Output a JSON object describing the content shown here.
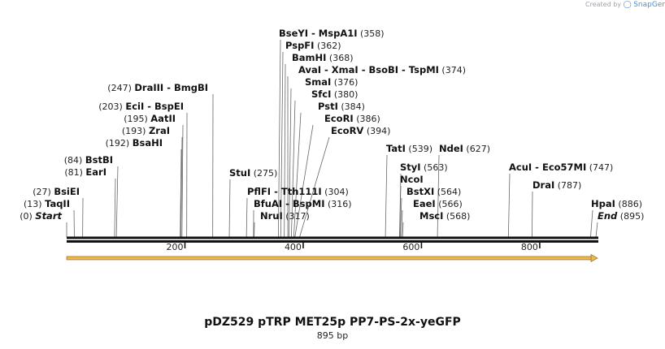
{
  "credit": {
    "text": "Created by",
    "brand": "SnapGene"
  },
  "map": {
    "title": "pDZ529 pTRP MET25p PP7-PS-2x-yeGFP",
    "length_label": "895 bp",
    "total_bp": 895,
    "ticks": [
      {
        "bp": 200,
        "label": "200"
      },
      {
        "bp": 400,
        "label": "400"
      },
      {
        "bp": 600,
        "label": "600"
      },
      {
        "bp": 800,
        "label": "800"
      }
    ],
    "feature": {
      "start": 0,
      "end": 895,
      "color": "#f0b84a",
      "direction": "forward"
    },
    "sites": [
      {
        "names": [
          "Start"
        ],
        "pos": "(0)",
        "bp": 0,
        "italic": true,
        "side": "left"
      },
      {
        "names": [
          "TaqII"
        ],
        "pos": "(13)",
        "bp": 13,
        "side": "left"
      },
      {
        "names": [
          "BsiEI"
        ],
        "pos": "(27)",
        "bp": 27,
        "side": "left"
      },
      {
        "names": [
          "EarI"
        ],
        "pos": "(81)",
        "bp": 81,
        "side": "left"
      },
      {
        "names": [
          "BstBI"
        ],
        "pos": "(84)",
        "bp": 84,
        "side": "left"
      },
      {
        "names": [
          "BsaHI"
        ],
        "pos": "(192)",
        "bp": 192,
        "side": "left"
      },
      {
        "names": [
          "ZraI"
        ],
        "pos": "(193)",
        "bp": 193,
        "side": "left"
      },
      {
        "names": [
          "AatII"
        ],
        "pos": "(195)",
        "bp": 195,
        "side": "left"
      },
      {
        "names": [
          "EciI",
          "BspEI"
        ],
        "pos": "(203)",
        "bp": 203,
        "side": "left"
      },
      {
        "names": [
          "DraIII",
          "BmgBI"
        ],
        "pos": "(247)",
        "bp": 247,
        "side": "left"
      },
      {
        "names": [
          "StuI"
        ],
        "pos": "(275)",
        "bp": 275,
        "side": "right"
      },
      {
        "names": [
          "PflFI",
          "Tth111I"
        ],
        "pos": "(304)",
        "bp": 304,
        "side": "right"
      },
      {
        "names": [
          "BfuAI",
          "BspMI"
        ],
        "pos": "(316)",
        "bp": 316,
        "side": "right"
      },
      {
        "names": [
          "NruI"
        ],
        "pos": "(317)",
        "bp": 317,
        "side": "right"
      },
      {
        "names": [
          "BseYI",
          "MspA1I"
        ],
        "pos": "(358)",
        "bp": 358,
        "side": "right"
      },
      {
        "names": [
          "PspFI"
        ],
        "pos": "(362)",
        "bp": 362,
        "side": "right"
      },
      {
        "names": [
          "BamHI"
        ],
        "pos": "(368)",
        "bp": 368,
        "side": "right"
      },
      {
        "names": [
          "AvaI",
          "XmaI",
          "BsoBI",
          "TspMI"
        ],
        "pos": "(374)",
        "bp": 374,
        "side": "right"
      },
      {
        "names": [
          "SmaI"
        ],
        "pos": "(376)",
        "bp": 376,
        "side": "right"
      },
      {
        "names": [
          "SfcI"
        ],
        "pos": "(380)",
        "bp": 380,
        "side": "right"
      },
      {
        "names": [
          "PstI"
        ],
        "pos": "(384)",
        "bp": 384,
        "side": "right"
      },
      {
        "names": [
          "EcoRI"
        ],
        "pos": "(386)",
        "bp": 386,
        "side": "right"
      },
      {
        "names": [
          "EcoRV"
        ],
        "pos": "(394)",
        "bp": 394,
        "side": "right"
      },
      {
        "names": [
          "TatI"
        ],
        "pos": "(539)",
        "bp": 539,
        "side": "right"
      },
      {
        "names": [
          "StyI"
        ],
        "pos": "(563)",
        "bp": 563,
        "side": "right"
      },
      {
        "names": [
          "NcoI"
        ],
        "pos": "",
        "bp": 563,
        "side": "right"
      },
      {
        "names": [
          "BstXI"
        ],
        "pos": "(564)",
        "bp": 564,
        "side": "right"
      },
      {
        "names": [
          "EaeI"
        ],
        "pos": "(566)",
        "bp": 566,
        "side": "right"
      },
      {
        "names": [
          "MscI"
        ],
        "pos": "(568)",
        "bp": 568,
        "side": "right"
      },
      {
        "names": [
          "NdeI"
        ],
        "pos": "(627)",
        "bp": 627,
        "side": "right"
      },
      {
        "names": [
          "AcuI",
          "Eco57MI"
        ],
        "pos": "(747)",
        "bp": 747,
        "side": "right"
      },
      {
        "names": [
          "DraI"
        ],
        "pos": "(787)",
        "bp": 787,
        "side": "right"
      },
      {
        "names": [
          "HpaI"
        ],
        "pos": "(886)",
        "bp": 886,
        "side": "right"
      },
      {
        "names": [
          "End"
        ],
        "pos": "(895)",
        "bp": 895,
        "italic": true,
        "side": "right"
      }
    ]
  }
}
